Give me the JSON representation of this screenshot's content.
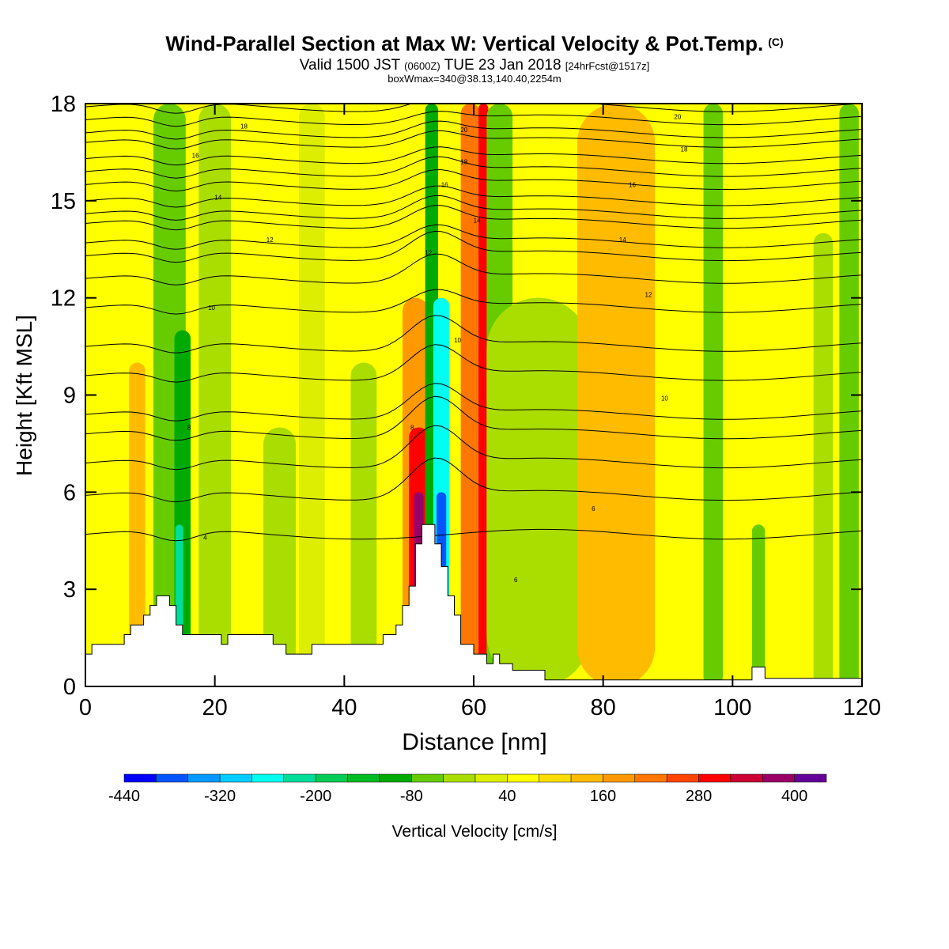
{
  "title": {
    "main": "Wind-Parallel Section at Max W: Vertical Velocity & Pot.Temp.",
    "copyright_mark": "(C)",
    "valid_prefix": "Valid 1500 JST",
    "valid_utc": "(0600Z)",
    "valid_date": "TUE 23 Jan 2018",
    "forecast": "[24hrFcst@1517z]",
    "box": "boxWmax=340@38.13,140.40,2254m"
  },
  "chart_data": {
    "type": "heatmap",
    "xlabel": "Distance [nm]",
    "ylabel": "Height [Kft MSL]",
    "xlim": [
      0,
      120
    ],
    "ylim": [
      0,
      18
    ],
    "xticks": [
      0,
      20,
      40,
      60,
      80,
      100,
      120
    ],
    "yticks": [
      0,
      3,
      6,
      9,
      12,
      15,
      18
    ],
    "background_color": "#ffff00",
    "colorbar": {
      "label": "Vertical Velocity [cm/s]",
      "tick_labels": [
        "-440",
        "-320",
        "-200",
        "-80",
        "40",
        "160",
        "280",
        "400"
      ],
      "levels": [
        -440,
        -400,
        -360,
        -320,
        -280,
        -240,
        -200,
        -160,
        -120,
        -80,
        -40,
        0,
        40,
        80,
        120,
        160,
        200,
        240,
        280,
        320,
        360,
        400,
        440
      ],
      "colors": [
        "#0000ff",
        "#0055ff",
        "#0099ff",
        "#00ccff",
        "#00ffee",
        "#00dd99",
        "#00cc55",
        "#00bb22",
        "#00aa00",
        "#66cc00",
        "#aadd00",
        "#ddee00",
        "#ffff00",
        "#ffdd00",
        "#ffbb00",
        "#ff9900",
        "#ff7700",
        "#ff4400",
        "#ff0000",
        "#cc0033",
        "#990066",
        "#660099"
      ]
    },
    "velocity_bands": [
      {
        "x": 3,
        "width": 8,
        "value": 40,
        "y_top": 14
      },
      {
        "x": 8,
        "width": 2.5,
        "value": 120,
        "y_top": 10
      },
      {
        "x": 13,
        "width": 5,
        "value": -80,
        "y_top": 18
      },
      {
        "x": 15,
        "width": 2.5,
        "value": -120,
        "y_top": 11
      },
      {
        "x": 14.5,
        "width": 1.2,
        "value": -240,
        "y_top": 5
      },
      {
        "x": 20,
        "width": 5,
        "value": -40,
        "y_top": 18
      },
      {
        "x": 30,
        "width": 5,
        "value": -40,
        "y_top": 8
      },
      {
        "x": 35,
        "width": 4,
        "value": 0,
        "y_top": 18
      },
      {
        "x": 43,
        "width": 4,
        "value": -40,
        "y_top": 10
      },
      {
        "x": 51,
        "width": 4,
        "value": 160,
        "y_top": 12
      },
      {
        "x": 51.5,
        "width": 3,
        "value": 280,
        "y_top": 8
      },
      {
        "x": 51.5,
        "width": 1.5,
        "value": 380,
        "y_top": 6
      },
      {
        "x": 53.5,
        "width": 2,
        "value": -120,
        "y_top": 18
      },
      {
        "x": 55,
        "width": 2.5,
        "value": -280,
        "y_top": 12
      },
      {
        "x": 55,
        "width": 1.5,
        "value": -380,
        "y_top": 6
      },
      {
        "x": 59.5,
        "width": 3,
        "value": 200,
        "y_top": 18
      },
      {
        "x": 61.5,
        "width": 1.5,
        "value": 280,
        "y_top": 18
      },
      {
        "x": 64,
        "width": 4,
        "value": -80,
        "y_top": 18
      },
      {
        "x": 70,
        "width": 16,
        "value": -40,
        "y_top": 12
      },
      {
        "x": 82,
        "width": 12,
        "value": 120,
        "y_top": 18
      },
      {
        "x": 97,
        "width": 3,
        "value": -80,
        "y_top": 18
      },
      {
        "x": 104,
        "width": 2,
        "value": -80,
        "y_top": 5
      },
      {
        "x": 114,
        "width": 3,
        "value": -40,
        "y_top": 14
      },
      {
        "x": 118,
        "width": 3,
        "value": -80,
        "y_top": 18
      }
    ],
    "terrain": {
      "x": [
        0,
        1,
        1,
        6,
        6,
        7,
        7,
        9,
        9,
        10,
        10,
        11,
        11,
        13,
        13,
        14,
        14,
        15,
        15,
        16,
        16,
        18,
        18,
        21,
        21,
        22,
        22,
        29,
        29,
        31,
        31,
        35,
        35,
        40,
        40,
        44,
        44,
        46,
        46,
        48,
        48,
        49,
        49,
        50,
        50,
        51,
        51,
        52,
        52,
        53,
        53,
        54,
        54,
        55,
        55,
        56,
        56,
        57,
        57,
        58,
        58,
        60,
        60,
        62,
        62,
        63,
        63,
        64,
        64,
        66,
        66,
        71,
        71,
        72,
        72,
        103,
        103,
        105,
        105,
        120
      ],
      "y": [
        1.0,
        1.0,
        1.3,
        1.3,
        1.6,
        1.6,
        1.9,
        1.9,
        2.2,
        2.2,
        2.5,
        2.5,
        2.8,
        2.8,
        2.5,
        2.5,
        1.9,
        1.9,
        1.6,
        1.6,
        1.6,
        1.6,
        1.6,
        1.6,
        1.3,
        1.3,
        1.6,
        1.6,
        1.3,
        1.3,
        1.0,
        1.0,
        1.3,
        1.3,
        1.3,
        1.3,
        1.3,
        1.3,
        1.6,
        1.6,
        1.9,
        1.9,
        2.5,
        2.5,
        3.1,
        3.1,
        4.4,
        4.4,
        5.0,
        5.0,
        5.0,
        5.0,
        4.4,
        4.4,
        3.7,
        3.7,
        2.8,
        2.8,
        2.2,
        2.2,
        1.3,
        1.3,
        1.0,
        1.0,
        0.7,
        0.7,
        1.0,
        1.0,
        0.7,
        0.7,
        0.5,
        0.5,
        0.2,
        0.2,
        0.2,
        0.2,
        0.6,
        0.6,
        0.25,
        0.25
      ]
    },
    "isentropes": [
      {
        "label": "4",
        "base": 4.7,
        "bump": 0.0,
        "label_x": 18.5,
        "label_y": 4.6
      },
      {
        "label": "6",
        "base": 5.9,
        "bump": 1.2,
        "label_x": 66.5,
        "label_y": 3.3
      },
      {
        "label": "6",
        "base": 6.9,
        "bump": 1.2,
        "label_x": 78.5,
        "label_y": 5.5
      },
      {
        "label": "8",
        "base": 7.8,
        "bump": 1.2,
        "label_x": 16,
        "label_y": 8.0
      },
      {
        "label": "8",
        "base": 8.4,
        "bump": 1.0,
        "label_x": 50.5,
        "label_y": 8.0
      },
      {
        "label": "10",
        "base": 9.6,
        "bump": 1.0,
        "label_x": 89.5,
        "label_y": 8.9
      },
      {
        "label": "10",
        "base": 10.5,
        "bump": 1.0,
        "label_x": 57.5,
        "label_y": 10.7
      },
      {
        "label": "10",
        "base": 11.7,
        "bump": 0.6,
        "label_x": 19.5,
        "label_y": 11.7
      },
      {
        "label": "12",
        "base": 12.6,
        "bump": 0.8,
        "label_x": 87,
        "label_y": 12.1
      },
      {
        "label": "12",
        "base": 13.3,
        "bump": 0.8,
        "label_x": 53,
        "label_y": 13.4
      },
      {
        "label": "12",
        "base": 13.7,
        "bump": 0.6,
        "label_x": 28.5,
        "label_y": 13.8
      },
      {
        "label": "14",
        "base": 14.3,
        "bump": 0.6,
        "label_x": 83,
        "label_y": 13.8
      },
      {
        "label": "14",
        "base": 14.6,
        "bump": 0.6,
        "label_x": 60.5,
        "label_y": 14.4
      },
      {
        "label": "14",
        "base": 15.0,
        "bump": 0.5,
        "label_x": 20.5,
        "label_y": 15.1
      },
      {
        "label": "16",
        "base": 15.5,
        "bump": 0.5,
        "label_x": 84.5,
        "label_y": 15.5
      },
      {
        "label": "16",
        "base": 15.9,
        "bump": 0.5,
        "label_x": 55.5,
        "label_y": 15.5
      },
      {
        "label": "16",
        "base": 16.3,
        "bump": 0.4,
        "label_x": 17,
        "label_y": 16.4
      },
      {
        "label": "18",
        "base": 16.8,
        "bump": 0.4,
        "label_x": 92.5,
        "label_y": 16.6
      },
      {
        "label": "18",
        "base": 17.1,
        "bump": 0.4,
        "label_x": 58.5,
        "label_y": 16.2
      },
      {
        "label": "18",
        "base": 17.5,
        "bump": 0.3,
        "label_x": 24.5,
        "label_y": 17.3
      },
      {
        "label": "20",
        "base": 17.9,
        "bump": 0.3,
        "label_x": 91.5,
        "label_y": 17.6
      },
      {
        "label": "20",
        "base": 18.2,
        "bump": 0.3,
        "label_x": 58.5,
        "label_y": 17.2
      }
    ]
  }
}
